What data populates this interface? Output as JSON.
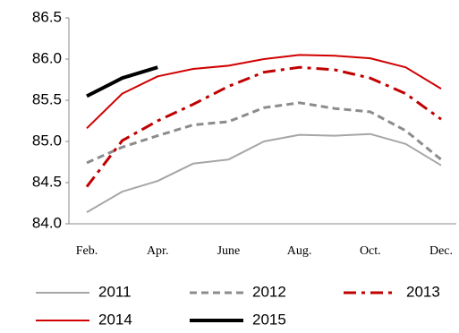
{
  "chart_data": {
    "type": "line",
    "categories": [
      "Feb.",
      null,
      "Apr.",
      null,
      "June",
      null,
      "Aug.",
      null,
      "Oct.",
      null,
      "Dec."
    ],
    "ylim": [
      84.0,
      86.5
    ],
    "yticks": [
      {
        "value": 84.0,
        "label": "84.0"
      },
      84.5,
      {
        "value": 85.0,
        "label": "85.0"
      },
      85.5,
      {
        "value": 86.0,
        "label": "86.0"
      },
      86.5
    ],
    "grid": false,
    "legend": "bottom",
    "series": [
      {
        "name": "2011",
        "color": "#a6a6a6",
        "dash": "solid",
        "width": 2,
        "values": [
          84.14,
          84.39,
          84.52,
          84.73,
          84.78,
          85.0,
          85.08,
          85.07,
          85.09,
          84.97,
          84.71
        ]
      },
      {
        "name": "2012",
        "color": "#8c8c8c",
        "dash": "dashed",
        "width": 3,
        "values": [
          84.74,
          84.93,
          85.07,
          85.2,
          85.24,
          85.41,
          85.47,
          85.4,
          85.36,
          85.13,
          84.78
        ]
      },
      {
        "name": "2013",
        "color": "#c00000",
        "dash": "dashdot",
        "width": 3,
        "values": [
          84.45,
          85.01,
          85.25,
          85.45,
          85.67,
          85.84,
          85.9,
          85.87,
          85.77,
          85.58,
          85.27
        ]
      },
      {
        "name": "2014",
        "color": "#d00000",
        "dash": "solid",
        "width": 2,
        "values": [
          85.16,
          85.58,
          85.79,
          85.88,
          85.92,
          86.0,
          86.05,
          86.04,
          86.01,
          85.9,
          85.64
        ]
      },
      {
        "name": "2015",
        "color": "#000000",
        "dash": "solid",
        "width": 4,
        "values": [
          85.55,
          85.77,
          85.9,
          null,
          null,
          null,
          null,
          null,
          null,
          null,
          null
        ]
      }
    ]
  }
}
